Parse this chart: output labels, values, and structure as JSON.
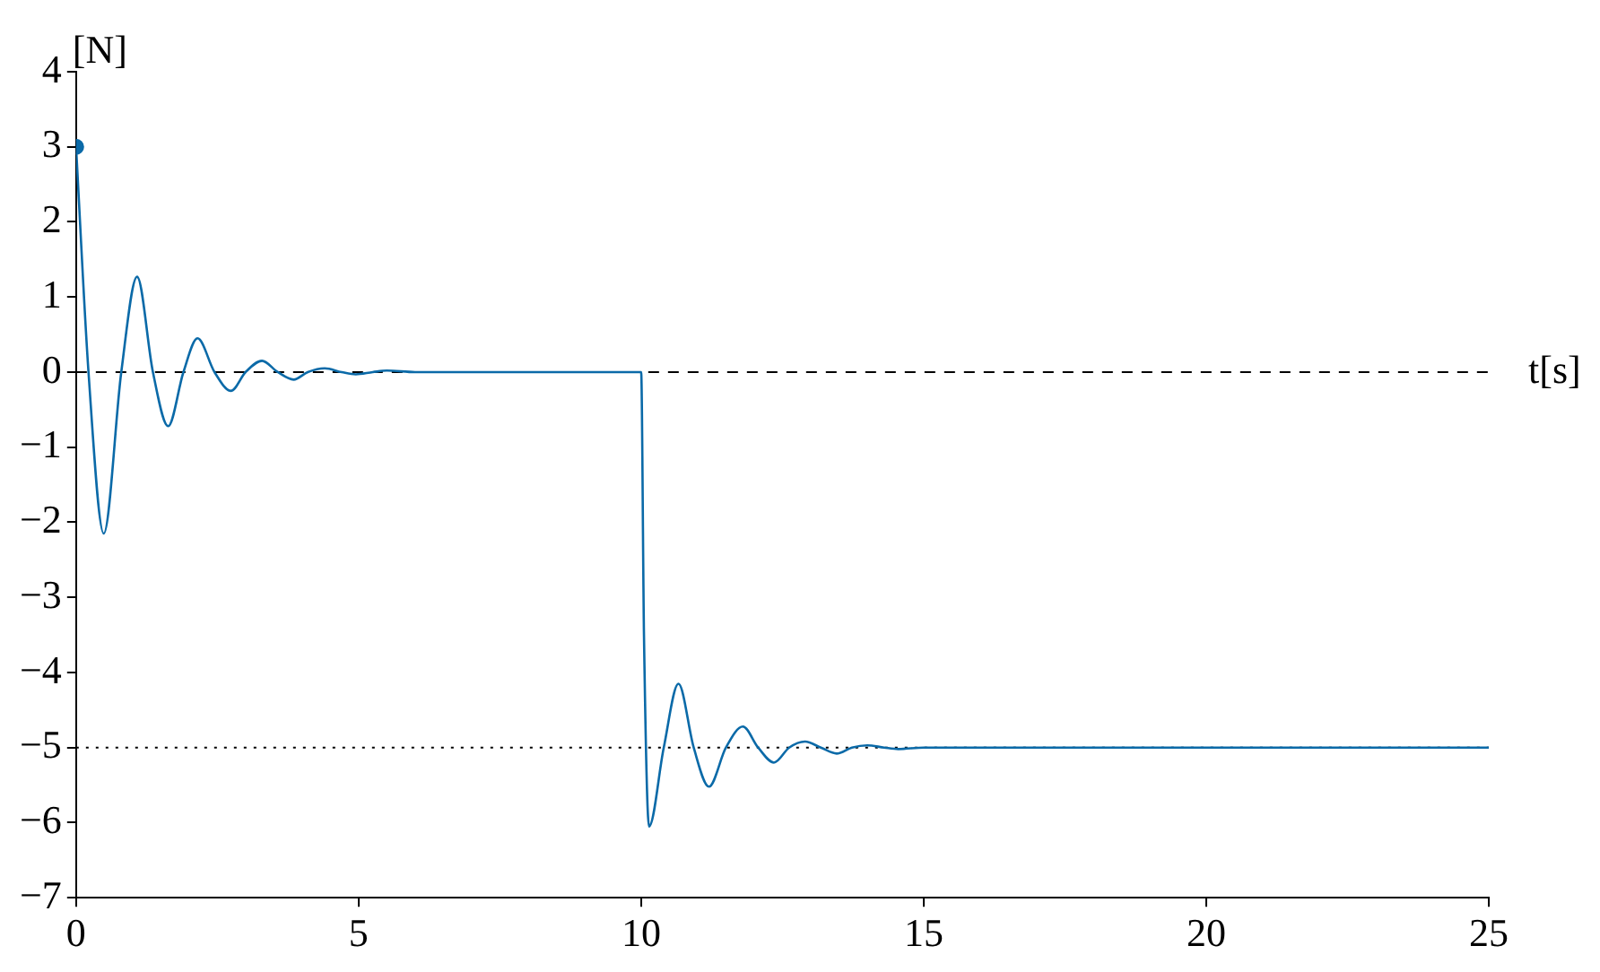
{
  "chart_data": {
    "type": "line",
    "xlabel": "t[s]",
    "ylabel": "[N]",
    "xlim": [
      0,
      25
    ],
    "xticks": [
      0,
      5,
      10,
      15,
      20,
      25
    ],
    "ylim": [
      -7,
      4
    ],
    "yticks": [
      -7,
      -6,
      -5,
      -4,
      -3,
      -2,
      -1,
      0,
      1,
      2,
      3,
      4
    ],
    "grid": false,
    "legend": false,
    "marker": "none",
    "line_style": "solid",
    "series": [
      {
        "type": "line",
        "color": "#0b6aa8",
        "x": [
          0,
          0.22,
          0.49,
          0.8,
          1.08,
          1.36,
          1.63,
          1.9,
          2.15,
          2.45,
          2.74,
          3.0,
          3.29,
          3.57,
          3.85,
          4.1,
          4.4,
          4.7,
          4.95,
          5.25,
          5.5,
          6,
          10,
          10.05,
          10.14,
          10.4,
          10.66,
          10.93,
          11.2,
          11.5,
          11.8,
          12.07,
          12.35,
          12.62,
          12.9,
          13.18,
          13.46,
          13.73,
          14.0,
          14.3,
          14.55,
          15,
          25
        ],
        "values": [
          3,
          0,
          -2.15,
          0,
          1.27,
          0,
          -0.72,
          0,
          0.45,
          0,
          -0.25,
          0,
          0.15,
          0,
          -0.1,
          0,
          0.05,
          0,
          -0.03,
          0,
          0.02,
          0,
          0,
          -3.5,
          -6.05,
          -5,
          -4.15,
          -5,
          -5.52,
          -5,
          -4.72,
          -5,
          -5.2,
          -5,
          -4.92,
          -5,
          -5.08,
          -5,
          -4.97,
          -5,
          -5.02,
          -5,
          -5
        ]
      },
      {
        "type": "scatter",
        "color": "#0b6aa8",
        "marker": "circle",
        "x": [
          0
        ],
        "values": [
          3
        ]
      }
    ],
    "ref_lines": [
      {
        "axis": "y",
        "value": 0,
        "line_style": "dashed",
        "color": "#000000"
      },
      {
        "axis": "y",
        "value": -5,
        "line_style": "dotted",
        "color": "#000000"
      }
    ]
  }
}
